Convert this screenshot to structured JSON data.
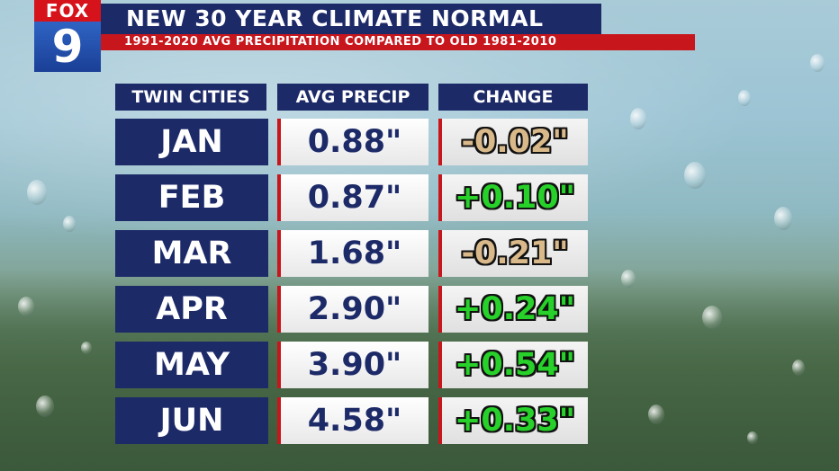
{
  "logo": {
    "brand": "FOX",
    "channel": "9"
  },
  "header": {
    "title": "NEW 30 YEAR CLIMATE NORMAL",
    "subtitle": "1991-2020 AVG PRECIPITATION COMPARED TO OLD 1981-2010"
  },
  "table": {
    "headers": [
      "TWIN CITIES",
      "AVG PRECIP",
      "CHANGE"
    ],
    "rows": [
      {
        "month": "JAN",
        "precip": "0.88\"",
        "change": "-0.02\"",
        "change_color": "#d9b98a"
      },
      {
        "month": "FEB",
        "precip": "0.87\"",
        "change": "+0.10\"",
        "change_color": "#27d12a"
      },
      {
        "month": "MAR",
        "precip": "1.68\"",
        "change": "-0.21\"",
        "change_color": "#d9b98a"
      },
      {
        "month": "APR",
        "precip": "2.90\"",
        "change": "+0.24\"",
        "change_color": "#27d12a"
      },
      {
        "month": "MAY",
        "precip": "3.90\"",
        "change": "+0.54\"",
        "change_color": "#27d12a"
      },
      {
        "month": "JUN",
        "precip": "4.58\"",
        "change": "+0.33\"",
        "change_color": "#27d12a"
      }
    ]
  },
  "colors": {
    "navy": "#1d2a68",
    "red": "#c8161d",
    "positive": "#27d12a",
    "negative": "#d9b98a"
  }
}
